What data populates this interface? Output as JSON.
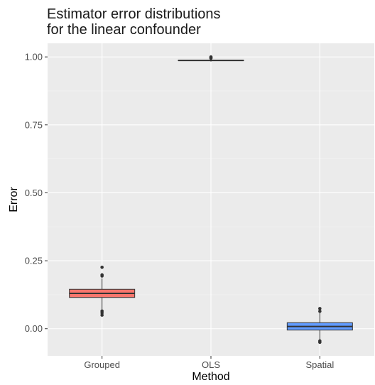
{
  "chart_data": {
    "type": "boxplot",
    "title_lines": [
      "Estimator error distributions",
      "for the linear confounder"
    ],
    "xlabel": "Method",
    "ylabel": "Error",
    "categories": [
      "Grouped",
      "OLS",
      "Spatial"
    ],
    "yticks": [
      0.0,
      0.25,
      0.5,
      0.75,
      1.0
    ],
    "ytick_labels": [
      "0.00",
      "0.25",
      "0.50",
      "0.75",
      "1.00"
    ],
    "ylim": [
      -0.1,
      1.05
    ],
    "boxes": [
      {
        "category": "Grouped",
        "fill": "#F8766D",
        "whisker_low": 0.065,
        "q1": 0.115,
        "median": 0.13,
        "q3": 0.145,
        "whisker_high": 0.185,
        "outliers": [
          0.226,
          0.198,
          0.194,
          0.065,
          0.058,
          0.05
        ]
      },
      {
        "category": "OLS",
        "fill": "#00BA38",
        "whisker_low": 0.983,
        "q1": 0.986,
        "median": 0.987,
        "q3": 0.988,
        "whisker_high": 0.993,
        "outliers": [
          1.0,
          0.997,
          0.995
        ]
      },
      {
        "category": "Spatial",
        "fill": "#619CFF",
        "whisker_low": -0.04,
        "q1": -0.005,
        "median": 0.008,
        "q3": 0.022,
        "whisker_high": 0.058,
        "outliers": [
          0.074,
          0.064,
          -0.045,
          -0.05
        ]
      }
    ],
    "grid": true,
    "legend": "none"
  }
}
